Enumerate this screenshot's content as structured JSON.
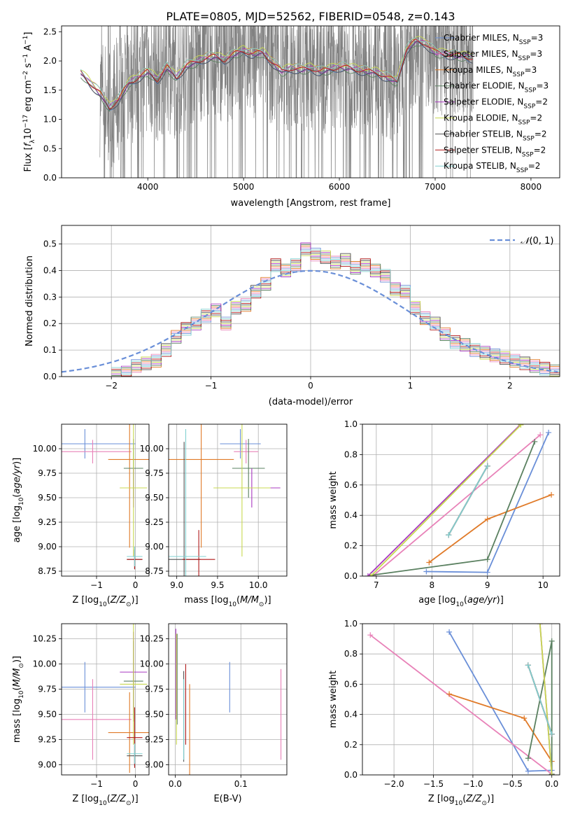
{
  "figure": {
    "title": "PLATE=0805, MJD=52562, FIBERID=0548, z=0.143"
  },
  "colors": {
    "Chabrier MILES": "#6a8fd8",
    "Salpeter MILES": "#e882b8",
    "Kroupa MILES": "#e07a28",
    "Chabrier ELODIE": "#5a8060",
    "Salpeter ELODIE": "#a838c0",
    "Kroupa ELODIE": "#c8d850",
    "Chabrier STELIB": "#505050",
    "Salpeter STELIB": "#b01818",
    "Kroupa STELIB": "#80d0d0",
    "data": "#808080",
    "gaussian": "#6a8fd8"
  },
  "chart_data": [
    {
      "id": "spectrum",
      "type": "line",
      "xlabel": "wavelength [Angstrom, rest frame]",
      "ylabel": "Flux [f_λ 10^-17 erg cm^-2 s^-1 A^-1]",
      "xlim": [
        3100,
        8300
      ],
      "ylim": [
        0,
        2.6
      ],
      "xticks": [
        4000,
        5000,
        6000,
        7000,
        8000
      ],
      "yticks": [
        0.0,
        0.5,
        1.0,
        1.5,
        2.0,
        2.5
      ],
      "legend": [
        {
          "name": "Chabrier MILES",
          "nssp": "3"
        },
        {
          "name": "Salpeter MILES",
          "nssp": "3"
        },
        {
          "name": "Kroupa MILES",
          "nssp": "3"
        },
        {
          "name": "Chabrier ELODIE",
          "nssp": "3"
        },
        {
          "name": "Salpeter ELODIE",
          "nssp": "2"
        },
        {
          "name": "Kroupa ELODIE",
          "nssp": "2"
        },
        {
          "name": "Chabrier STELIB",
          "nssp": "2"
        },
        {
          "name": "Salpeter STELIB",
          "nssp": "2"
        },
        {
          "name": "Kroupa STELIB",
          "nssp": "2"
        }
      ],
      "legend_position": "top-right",
      "model_continuum": {
        "x": [
          3300,
          3400,
          3500,
          3600,
          3700,
          3800,
          3900,
          4000,
          4100,
          4200,
          4300,
          4400,
          4500,
          4600,
          4700,
          4800,
          4900,
          5000,
          5100,
          5200,
          5300,
          5400,
          5500,
          5600,
          5700,
          5800,
          5900,
          6000,
          6100,
          6200,
          6300,
          6400,
          6500,
          6600,
          6700,
          6800,
          6900,
          7000,
          7100,
          7200,
          7300,
          7400
        ],
        "y": [
          1.8,
          1.62,
          1.45,
          1.2,
          1.35,
          1.62,
          1.72,
          1.82,
          1.68,
          1.9,
          1.72,
          1.92,
          1.98,
          2.05,
          2.08,
          2.02,
          2.12,
          2.18,
          2.12,
          2.15,
          1.98,
          1.82,
          1.88,
          1.85,
          1.88,
          1.82,
          1.86,
          1.9,
          1.88,
          1.85,
          1.82,
          1.8,
          1.72,
          1.65,
          2.2,
          2.35,
          2.3,
          2.15,
          2.12,
          2.1,
          2.08,
          2.05
        ]
      },
      "data_range": [
        3500,
        7400
      ]
    },
    {
      "id": "residuals",
      "type": "line",
      "xlabel": "(data-model)/error",
      "ylabel": "Normed distribution",
      "xlim": [
        -2.5,
        2.5
      ],
      "ylim": [
        0,
        0.57
      ],
      "xticks": [
        -2,
        -1,
        0,
        1,
        2
      ],
      "yticks": [
        0.0,
        0.1,
        0.2,
        0.3,
        0.4,
        0.5
      ],
      "legend": "N(0,1)",
      "legend_position": "top-right",
      "bins": [
        -2.0,
        -1.9,
        -1.8,
        -1.7,
        -1.6,
        -1.5,
        -1.4,
        -1.3,
        -1.2,
        -1.1,
        -1.0,
        -0.9,
        -0.8,
        -0.7,
        -0.6,
        -0.5,
        -0.4,
        -0.3,
        -0.2,
        -0.1,
        0.0,
        0.1,
        0.2,
        0.3,
        0.4,
        0.5,
        0.6,
        0.7,
        0.8,
        0.9,
        1.0,
        1.1,
        1.2,
        1.3,
        1.4,
        1.5,
        1.6,
        1.7,
        1.8,
        1.9,
        2.0,
        2.1,
        2.2,
        2.3,
        2.4
      ],
      "hist_values": [
        0.01,
        0.015,
        0.04,
        0.05,
        0.06,
        0.1,
        0.15,
        0.18,
        0.2,
        0.23,
        0.25,
        0.2,
        0.26,
        0.27,
        0.32,
        0.35,
        0.42,
        0.4,
        0.42,
        0.48,
        0.46,
        0.45,
        0.43,
        0.44,
        0.41,
        0.42,
        0.4,
        0.38,
        0.33,
        0.32,
        0.26,
        0.22,
        0.2,
        0.16,
        0.13,
        0.12,
        0.1,
        0.09,
        0.08,
        0.07,
        0.06,
        0.05,
        0.04,
        0.03,
        0.02
      ]
    },
    {
      "id": "age-vs-Z",
      "type": "scatter",
      "xlabel": "Z [log10(Z/Z⊙)]",
      "ylabel": "age [log10(age/yr)]",
      "xlim": [
        -1.9,
        0.35
      ],
      "ylim": [
        8.7,
        10.25
      ],
      "xticks": [
        -1,
        0
      ],
      "yticks": [
        8.75,
        9.0,
        9.25,
        9.5,
        9.75,
        10.0
      ],
      "points": [
        {
          "series": "Chabrier MILES",
          "x": -1.3,
          "y": 10.05,
          "xerr": 1.3,
          "yerr": 0.15
        },
        {
          "series": "Salpeter MILES",
          "x": -1.1,
          "y": 9.97,
          "xerr": 1.0,
          "yerr": 0.12
        },
        {
          "series": "Kroupa MILES",
          "x": -0.15,
          "y": 9.89,
          "xerr": 0.55,
          "yerr": 0.9
        },
        {
          "series": "Chabrier ELODIE",
          "x": -0.05,
          "y": 9.8,
          "xerr": 0.25,
          "yerr": 0.3
        },
        {
          "series": "Salpeter ELODIE",
          "x": -0.05,
          "y": 9.6,
          "xerr": 0.35,
          "yerr": 0.2
        },
        {
          "series": "Kroupa ELODIE",
          "x": -0.05,
          "y": 9.6,
          "xerr": 0.35,
          "yerr": 0.7
        },
        {
          "series": "Chabrier STELIB",
          "x": -0.02,
          "y": 8.87,
          "xerr": 0.2,
          "yerr": 0.1
        },
        {
          "series": "Salpeter STELIB",
          "x": -0.02,
          "y": 8.87,
          "xerr": 0.2,
          "yerr": 0.1
        },
        {
          "series": "Kroupa STELIB",
          "x": -0.02,
          "y": 8.9,
          "xerr": 0.2,
          "yerr": 0.1
        }
      ]
    },
    {
      "id": "age-vs-mass",
      "type": "scatter",
      "xlabel": "mass [log10(M/M⊙)]",
      "ylabel": "",
      "xlim": [
        8.9,
        10.35
      ],
      "ylim": [
        8.7,
        10.25
      ],
      "xticks": [
        9.0,
        9.5,
        10.0
      ],
      "yticks": [
        8.75,
        9.0,
        9.25,
        9.5,
        9.75,
        10.0
      ],
      "points": [
        {
          "series": "Chabrier MILES",
          "x": 9.78,
          "y": 10.05,
          "xerr": 0.25,
          "yerr": 0.15
        },
        {
          "series": "Salpeter MILES",
          "x": 9.85,
          "y": 9.97,
          "xerr": 0.15,
          "yerr": 0.12
        },
        {
          "series": "Kroupa MILES",
          "x": 9.3,
          "y": 9.89,
          "xerr": 0.4,
          "yerr": 0.9
        },
        {
          "series": "Chabrier ELODIE",
          "x": 9.88,
          "y": 9.8,
          "xerr": 0.2,
          "yerr": 0.3
        },
        {
          "series": "Salpeter ELODIE",
          "x": 9.92,
          "y": 9.6,
          "xerr": 0.35,
          "yerr": 0.2
        },
        {
          "series": "Kroupa ELODIE",
          "x": 9.8,
          "y": 9.6,
          "xerr": 0.35,
          "yerr": 0.7
        },
        {
          "series": "Chabrier STELIB",
          "x": 9.09,
          "y": 8.87,
          "xerr": 0.2,
          "yerr": 1.2
        },
        {
          "series": "Salpeter STELIB",
          "x": 9.27,
          "y": 8.87,
          "xerr": 0.2,
          "yerr": 0.3
        },
        {
          "series": "Kroupa STELIB",
          "x": 9.11,
          "y": 8.9,
          "xerr": 0.25,
          "yerr": 1.3
        }
      ]
    },
    {
      "id": "weight-vs-age",
      "type": "line",
      "xlabel": "age [log10(age/yr)]",
      "ylabel": "mass weight",
      "xlim": [
        6.75,
        10.3
      ],
      "ylim": [
        0,
        1.0
      ],
      "xticks": [
        7,
        8,
        9,
        10
      ],
      "yticks": [
        0.0,
        0.2,
        0.4,
        0.6,
        0.8,
        1.0
      ],
      "series": [
        {
          "name": "Chabrier MILES",
          "x": [
            7.9,
            9.0,
            10.1
          ],
          "y": [
            0.03,
            0.025,
            0.945
          ]
        },
        {
          "name": "Salpeter MILES",
          "x": [
            6.95,
            9.95
          ],
          "y": [
            0.005,
            0.93
          ]
        },
        {
          "name": "Kroupa MILES",
          "x": [
            7.95,
            9.0,
            10.15
          ],
          "y": [
            0.09,
            0.375,
            0.535
          ]
        },
        {
          "name": "Chabrier ELODIE",
          "x": [
            6.9,
            9.0,
            9.85
          ],
          "y": [
            0.005,
            0.11,
            0.885
          ]
        },
        {
          "name": "Salpeter ELODIE",
          "x": [
            6.85,
            9.6
          ],
          "y": [
            0.0,
            1.0
          ]
        },
        {
          "name": "Kroupa ELODIE",
          "x": [
            6.9,
            9.6
          ],
          "y": [
            0.0,
            0.995
          ]
        },
        {
          "name": "Chabrier STELIB",
          "x": [
            8.3,
            9.0
          ],
          "y": [
            0.27,
            0.725
          ]
        },
        {
          "name": "Salpeter STELIB",
          "x": [
            8.3,
            9.0
          ],
          "y": [
            0.27,
            0.725
          ]
        },
        {
          "name": "Kroupa STELIB",
          "x": [
            8.3,
            9.0
          ],
          "y": [
            0.27,
            0.725
          ]
        }
      ]
    },
    {
      "id": "mass-vs-Z",
      "type": "scatter",
      "xlabel": "Z [log10(Z/Z⊙)]",
      "ylabel": "mass [log10(M/M⊙)]",
      "xlim": [
        -1.9,
        0.35
      ],
      "ylim": [
        8.9,
        10.4
      ],
      "xticks": [
        -1,
        0
      ],
      "yticks": [
        9.0,
        9.25,
        9.5,
        9.75,
        10.0,
        10.25
      ],
      "points": [
        {
          "series": "Chabrier MILES",
          "x": -1.3,
          "y": 9.77,
          "xerr": 1.3,
          "yerr": 0.25
        },
        {
          "series": "Salpeter MILES",
          "x": -1.1,
          "y": 9.45,
          "xerr": 1.0,
          "yerr": 0.4
        },
        {
          "series": "Kroupa MILES",
          "x": -0.15,
          "y": 9.32,
          "xerr": 0.55,
          "yerr": 0.4
        },
        {
          "series": "Chabrier ELODIE",
          "x": -0.05,
          "y": 9.83,
          "xerr": 0.25,
          "yerr": 0.4
        },
        {
          "series": "Salpeter ELODIE",
          "x": -0.05,
          "y": 9.92,
          "xerr": 0.35,
          "yerr": 0.4
        },
        {
          "series": "Kroupa ELODIE",
          "x": -0.05,
          "y": 9.8,
          "xerr": 0.35,
          "yerr": 0.6
        },
        {
          "series": "Chabrier STELIB",
          "x": -0.02,
          "y": 9.09,
          "xerr": 0.2,
          "yerr": 0.1
        },
        {
          "series": "Salpeter STELIB",
          "x": -0.02,
          "y": 9.27,
          "xerr": 0.2,
          "yerr": 0.3
        },
        {
          "series": "Kroupa STELIB",
          "x": -0.02,
          "y": 9.11,
          "xerr": 0.2,
          "yerr": 0.1
        }
      ]
    },
    {
      "id": "mass-vs-ebv",
      "type": "scatter",
      "xlabel": "E(B-V)",
      "ylabel": "",
      "xlim": [
        -0.01,
        0.17
      ],
      "ylim": [
        8.9,
        10.4
      ],
      "xticks": [
        0.0,
        0.1
      ],
      "yticks": [
        9.0,
        9.25,
        9.5,
        9.75,
        10.0,
        10.25
      ],
      "points": [
        {
          "series": "Chabrier MILES",
          "x": 0.083,
          "y": 9.77,
          "yerr": 0.25
        },
        {
          "series": "Salpeter MILES",
          "x": 0.161,
          "y": 9.5,
          "yerr": 0.45
        },
        {
          "series": "Kroupa MILES",
          "x": 0.022,
          "y": 9.35,
          "yerr": 0.45
        },
        {
          "series": "Chabrier ELODIE",
          "x": 0.003,
          "y": 9.85,
          "yerr": 0.45
        },
        {
          "series": "Salpeter ELODIE",
          "x": 0.001,
          "y": 9.9,
          "yerr": 0.45
        },
        {
          "series": "Kroupa ELODIE",
          "x": 0.002,
          "y": 9.75,
          "yerr": 0.55
        },
        {
          "series": "Chabrier STELIB",
          "x": 0.013,
          "y": 9.48,
          "yerr": 0.45
        },
        {
          "series": "Salpeter STELIB",
          "x": 0.016,
          "y": 9.6,
          "yerr": 0.4
        },
        {
          "series": "Kroupa STELIB",
          "x": 0.013,
          "y": 9.45,
          "yerr": 0.4
        }
      ]
    },
    {
      "id": "weight-vs-Z",
      "type": "line",
      "xlabel": "Z [log10(Z/Z⊙)]",
      "ylabel": "mass weight",
      "xlim": [
        -2.4,
        0.1
      ],
      "ylim": [
        0,
        1.0
      ],
      "xticks": [
        -2.0,
        -1.5,
        -1.0,
        -0.5,
        0.0
      ],
      "yticks": [
        0.0,
        0.2,
        0.4,
        0.6,
        0.8,
        1.0
      ],
      "series": [
        {
          "name": "Chabrier MILES",
          "x": [
            -1.3,
            -0.3,
            0.0
          ],
          "y": [
            0.945,
            0.025,
            0.03
          ]
        },
        {
          "name": "Salpeter MILES",
          "x": [
            -2.3,
            0.0
          ],
          "y": [
            0.925,
            0.005
          ]
        },
        {
          "name": "Kroupa MILES",
          "x": [
            -1.3,
            -0.35,
            0.0
          ],
          "y": [
            0.535,
            0.375,
            0.09
          ]
        },
        {
          "name": "Chabrier ELODIE",
          "x": [
            -0.3,
            0.0,
            0.0
          ],
          "y": [
            0.11,
            0.885,
            0.005
          ]
        },
        {
          "name": "Salpeter ELODIE",
          "x": [
            -0.15,
            0.0
          ],
          "y": [
            1.0,
            0.0
          ]
        },
        {
          "name": "Kroupa ELODIE",
          "x": [
            -0.15,
            0.0
          ],
          "y": [
            1.0,
            0.0
          ]
        },
        {
          "name": "Chabrier STELIB",
          "x": [
            -0.3,
            0.0
          ],
          "y": [
            0.725,
            0.27
          ]
        },
        {
          "name": "Salpeter STELIB",
          "x": [
            -0.3,
            0.0
          ],
          "y": [
            0.725,
            0.27
          ]
        },
        {
          "name": "Kroupa STELIB",
          "x": [
            -0.3,
            0.0
          ],
          "y": [
            0.725,
            0.27
          ]
        }
      ]
    }
  ]
}
